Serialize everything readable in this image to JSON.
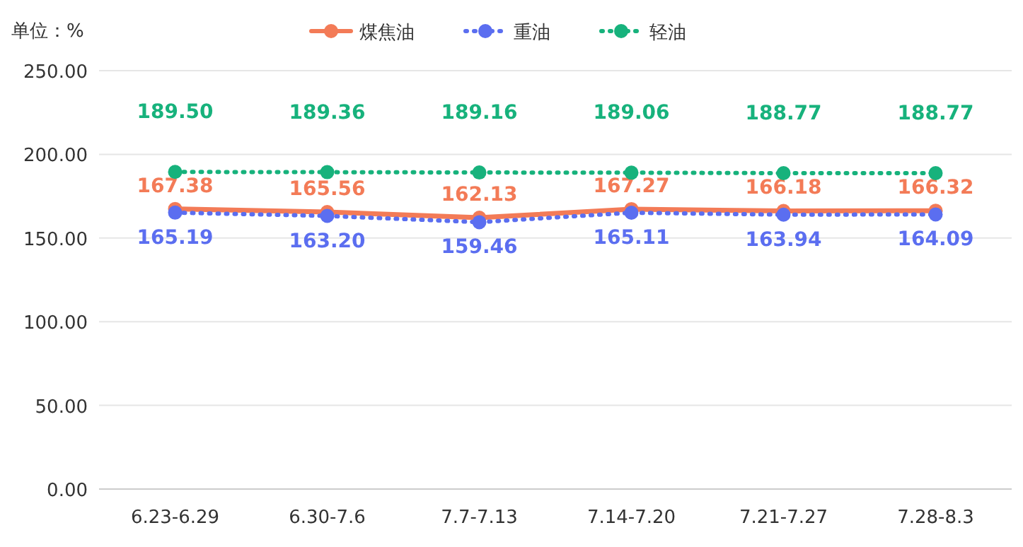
{
  "chart_data": {
    "type": "line",
    "ylabel": "单位：%",
    "categories": [
      "6.23-6.29",
      "6.30-7.6",
      "7.7-7.13",
      "7.14-7.20",
      "7.21-7.27",
      "7.28-8.3"
    ],
    "series": [
      {
        "name": "煤焦油",
        "color": "#f37b57",
        "line_style": "solid",
        "values": [
          167.38,
          165.56,
          162.13,
          167.27,
          166.18,
          166.32
        ],
        "value_labels": [
          "167.38",
          "165.56",
          "162.13",
          "167.27",
          "166.18",
          "166.32"
        ]
      },
      {
        "name": "重油",
        "color": "#5b6ef0",
        "line_style": "dotted",
        "values": [
          165.19,
          163.2,
          159.46,
          165.11,
          163.94,
          164.09
        ],
        "value_labels": [
          "165.19",
          "163.20",
          "159.46",
          "165.11",
          "163.94",
          "164.09"
        ]
      },
      {
        "name": "轻油",
        "color": "#17b27c",
        "line_style": "dotted",
        "values": [
          189.5,
          189.36,
          189.16,
          189.06,
          188.77,
          188.77
        ],
        "value_labels": [
          "189.50",
          "189.36",
          "189.16",
          "189.06",
          "188.77",
          "188.77"
        ]
      }
    ],
    "ylim": [
      0,
      250
    ],
    "yticks": [
      {
        "value": 0,
        "label": "0.00"
      },
      {
        "value": 50,
        "label": "50.00"
      },
      {
        "value": 100,
        "label": "100.00"
      },
      {
        "value": 150,
        "label": "150.00"
      },
      {
        "value": 200,
        "label": "200.00"
      },
      {
        "value": 250,
        "label": "250.00"
      }
    ],
    "grid": "y",
    "legend": "top",
    "marker": "circle"
  }
}
